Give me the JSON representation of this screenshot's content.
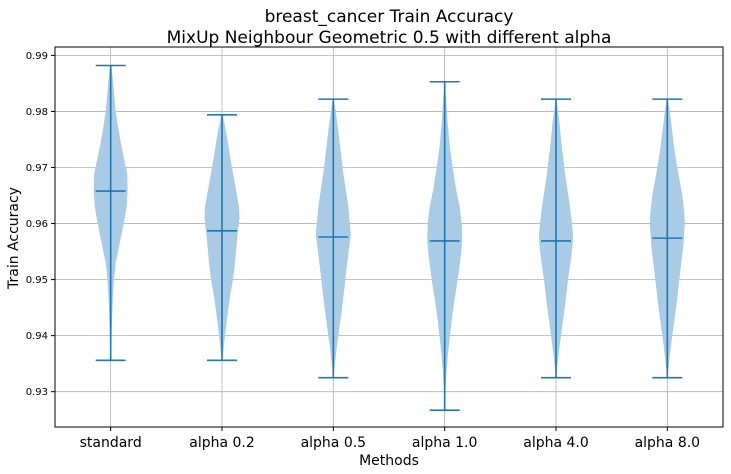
{
  "chart_data": {
    "type": "violin",
    "title": "breast_cancer Train Accuracy",
    "subtitle": "MixUp Neighbour Geometric 0.5 with different alpha",
    "xlabel": "Methods",
    "ylabel": "Train Accuracy",
    "ylim": [
      0.9237,
      0.9915
    ],
    "yticks": [
      "0.93",
      "0.94",
      "0.95",
      "0.96",
      "0.97",
      "0.98",
      "0.99"
    ],
    "ytick_values": [
      0.93,
      0.94,
      0.95,
      0.96,
      0.97,
      0.98,
      0.99
    ],
    "grid": true,
    "colors": {
      "body": "#a9cbe5",
      "line": "#1f77b4"
    },
    "categories": [
      "standard",
      "alpha 0.2",
      "alpha 0.5",
      "alpha 1.0",
      "alpha 4.0",
      "alpha 8.0"
    ],
    "series": [
      {
        "min": 0.9356,
        "mean": 0.9658,
        "max": 0.9882,
        "profile": [
          [
            0.9356,
            0.1
          ],
          [
            0.938,
            0.6
          ],
          [
            0.942,
            1.2
          ],
          [
            0.946,
            2.0
          ],
          [
            0.95,
            3.2
          ],
          [
            0.953,
            5.0
          ],
          [
            0.956,
            8.5
          ],
          [
            0.96,
            13.0
          ],
          [
            0.963,
            16.0
          ],
          [
            0.966,
            17.0
          ],
          [
            0.969,
            16.5
          ],
          [
            0.971,
            14.0
          ],
          [
            0.974,
            10.5
          ],
          [
            0.977,
            7.5
          ],
          [
            0.98,
            5.0
          ],
          [
            0.983,
            3.5
          ],
          [
            0.986,
            2.0
          ],
          [
            0.9882,
            0.5
          ]
        ]
      },
      {
        "min": 0.9356,
        "mean": 0.9587,
        "max": 0.9794,
        "profile": [
          [
            0.9356,
            0.1
          ],
          [
            0.937,
            1.2
          ],
          [
            0.94,
            3.0
          ],
          [
            0.943,
            5.0
          ],
          [
            0.947,
            8.0
          ],
          [
            0.95,
            11.0
          ],
          [
            0.953,
            13.0
          ],
          [
            0.956,
            14.5
          ],
          [
            0.958,
            15.5
          ],
          [
            0.961,
            17.5
          ],
          [
            0.963,
            17.0
          ],
          [
            0.966,
            14.0
          ],
          [
            0.969,
            11.0
          ],
          [
            0.972,
            8.0
          ],
          [
            0.975,
            5.5
          ],
          [
            0.977,
            3.5
          ],
          [
            0.9794,
            0.5
          ]
        ]
      },
      {
        "min": 0.9325,
        "mean": 0.9576,
        "max": 0.9822,
        "profile": [
          [
            0.9325,
            0.1
          ],
          [
            0.934,
            1.0
          ],
          [
            0.938,
            3.5
          ],
          [
            0.942,
            6.5
          ],
          [
            0.946,
            9.5
          ],
          [
            0.95,
            12.0
          ],
          [
            0.953,
            14.0
          ],
          [
            0.956,
            16.0
          ],
          [
            0.958,
            17.5
          ],
          [
            0.96,
            16.5
          ],
          [
            0.963,
            15.0
          ],
          [
            0.966,
            12.5
          ],
          [
            0.969,
            10.0
          ],
          [
            0.972,
            8.0
          ],
          [
            0.975,
            6.0
          ],
          [
            0.978,
            4.0
          ],
          [
            0.98,
            2.5
          ],
          [
            0.9822,
            0.5
          ]
        ]
      },
      {
        "min": 0.9267,
        "mean": 0.9569,
        "max": 0.9853,
        "profile": [
          [
            0.9267,
            0.1
          ],
          [
            0.93,
            0.6
          ],
          [
            0.934,
            2.0
          ],
          [
            0.938,
            4.0
          ],
          [
            0.942,
            6.5
          ],
          [
            0.946,
            9.5
          ],
          [
            0.95,
            13.0
          ],
          [
            0.954,
            16.0
          ],
          [
            0.957,
            17.5
          ],
          [
            0.96,
            17.0
          ],
          [
            0.963,
            15.0
          ],
          [
            0.966,
            11.5
          ],
          [
            0.97,
            8.0
          ],
          [
            0.974,
            5.0
          ],
          [
            0.978,
            3.0
          ],
          [
            0.982,
            1.5
          ],
          [
            0.9853,
            0.3
          ]
        ]
      },
      {
        "min": 0.9325,
        "mean": 0.9569,
        "max": 0.9822,
        "profile": [
          [
            0.9325,
            0.1
          ],
          [
            0.934,
            1.0
          ],
          [
            0.938,
            3.5
          ],
          [
            0.942,
            6.5
          ],
          [
            0.946,
            9.5
          ],
          [
            0.95,
            12.0
          ],
          [
            0.953,
            14.5
          ],
          [
            0.956,
            16.5
          ],
          [
            0.958,
            17.0
          ],
          [
            0.96,
            16.0
          ],
          [
            0.963,
            14.0
          ],
          [
            0.966,
            11.5
          ],
          [
            0.969,
            9.0
          ],
          [
            0.972,
            7.0
          ],
          [
            0.975,
            5.0
          ],
          [
            0.978,
            3.5
          ],
          [
            0.98,
            2.0
          ],
          [
            0.9822,
            0.5
          ]
        ]
      },
      {
        "min": 0.9325,
        "mean": 0.9574,
        "max": 0.9822,
        "profile": [
          [
            0.9325,
            0.1
          ],
          [
            0.934,
            1.0
          ],
          [
            0.938,
            3.5
          ],
          [
            0.942,
            6.5
          ],
          [
            0.946,
            9.5
          ],
          [
            0.95,
            12.0
          ],
          [
            0.953,
            14.0
          ],
          [
            0.956,
            16.0
          ],
          [
            0.96,
            17.5
          ],
          [
            0.962,
            17.0
          ],
          [
            0.965,
            15.0
          ],
          [
            0.968,
            12.0
          ],
          [
            0.971,
            9.0
          ],
          [
            0.974,
            6.5
          ],
          [
            0.977,
            4.5
          ],
          [
            0.98,
            2.5
          ],
          [
            0.9822,
            0.5
          ]
        ]
      }
    ]
  }
}
